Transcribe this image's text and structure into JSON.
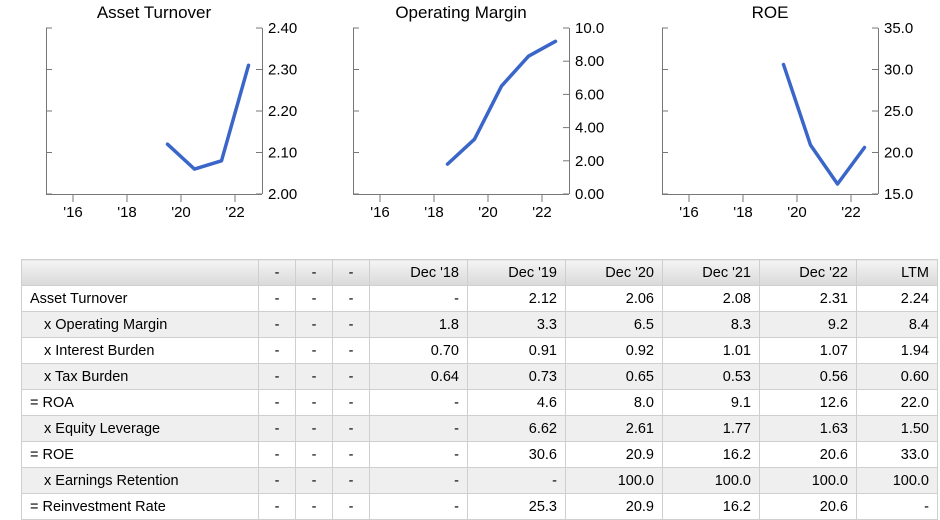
{
  "chart_data": [
    {
      "type": "line",
      "title": "Asset Turnover",
      "x": [
        2019.5,
        2020.5,
        2021.5,
        2022.5
      ],
      "y": [
        2.12,
        2.06,
        2.08,
        2.31
      ],
      "x_ticks": [
        "'16",
        "'18",
        "'20",
        "'22"
      ],
      "y_ticks": [
        "2.00",
        "2.10",
        "2.20",
        "2.30",
        "2.40"
      ],
      "ylim": [
        2.0,
        2.4
      ],
      "y_axis": "right",
      "line_color": "#3a66c9"
    },
    {
      "type": "line",
      "title": "Operating Margin",
      "x": [
        2018.5,
        2019.5,
        2020.5,
        2021.5,
        2022.5
      ],
      "y": [
        1.8,
        3.3,
        6.5,
        8.3,
        9.2
      ],
      "x_ticks": [
        "'16",
        "'18",
        "'20",
        "'22"
      ],
      "y_ticks": [
        "0.00",
        "2.00",
        "4.00",
        "6.00",
        "8.00",
        "10.0"
      ],
      "ylim": [
        0,
        10
      ],
      "y_axis": "right",
      "line_color": "#3a66c9"
    },
    {
      "type": "line",
      "title": "ROE",
      "x": [
        2019.5,
        2020.5,
        2021.5,
        2022.5
      ],
      "y": [
        30.6,
        20.9,
        16.2,
        20.6
      ],
      "x_ticks": [
        "'16",
        "'18",
        "'20",
        "'22"
      ],
      "y_ticks": [
        "15.0",
        "20.0",
        "25.0",
        "30.0",
        "35.0"
      ],
      "ylim": [
        15,
        35
      ],
      "y_axis": "right",
      "line_color": "#3a66c9"
    }
  ],
  "table": {
    "headers": [
      "",
      "-",
      "-",
      "-",
      "Dec '18",
      "Dec '19",
      "Dec '20",
      "Dec '21",
      "Dec '22",
      "LTM"
    ],
    "rows": [
      {
        "label": "Asset Turnover",
        "indent": false,
        "values": [
          "-",
          "-",
          "-",
          "-",
          "2.12",
          "2.06",
          "2.08",
          "2.31",
          "2.24"
        ]
      },
      {
        "label": "x Operating Margin",
        "indent": true,
        "values": [
          "-",
          "-",
          "-",
          "1.8",
          "3.3",
          "6.5",
          "8.3",
          "9.2",
          "8.4"
        ]
      },
      {
        "label": "x Interest Burden",
        "indent": true,
        "values": [
          "-",
          "-",
          "-",
          "0.70",
          "0.91",
          "0.92",
          "1.01",
          "1.07",
          "1.94"
        ]
      },
      {
        "label": "x Tax Burden",
        "indent": true,
        "values": [
          "-",
          "-",
          "-",
          "0.64",
          "0.73",
          "0.65",
          "0.53",
          "0.56",
          "0.60"
        ]
      },
      {
        "label": "= ROA",
        "indent": false,
        "values": [
          "-",
          "-",
          "-",
          "-",
          "4.6",
          "8.0",
          "9.1",
          "12.6",
          "22.0"
        ]
      },
      {
        "label": "x Equity Leverage",
        "indent": true,
        "values": [
          "-",
          "-",
          "-",
          "-",
          "6.62",
          "2.61",
          "1.77",
          "1.63",
          "1.50"
        ]
      },
      {
        "label": "= ROE",
        "indent": false,
        "values": [
          "-",
          "-",
          "-",
          "-",
          "30.6",
          "20.9",
          "16.2",
          "20.6",
          "33.0"
        ]
      },
      {
        "label": "x Earnings Retention",
        "indent": true,
        "values": [
          "-",
          "-",
          "-",
          "-",
          "-",
          "100.0",
          "100.0",
          "100.0",
          "100.0"
        ]
      },
      {
        "label": "= Reinvestment Rate",
        "indent": false,
        "values": [
          "-",
          "-",
          "-",
          "-",
          "25.3",
          "20.9",
          "16.2",
          "20.6",
          "-"
        ]
      }
    ]
  }
}
